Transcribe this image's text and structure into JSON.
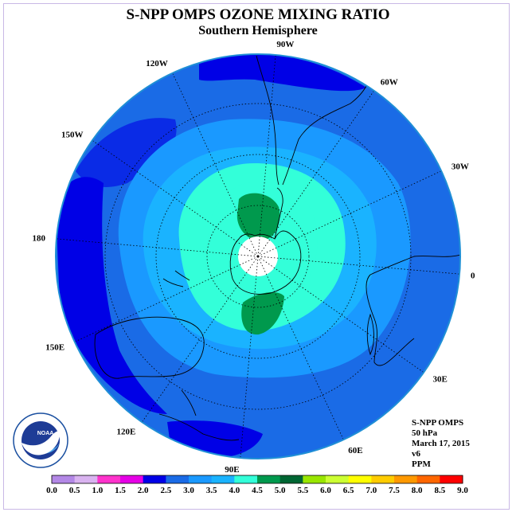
{
  "title": "S-NPP OMPS OZONE MIXING RATIO",
  "subtitle": "Southern Hemisphere",
  "info_lines": [
    "S-NPP OMPS",
    "50 hPa",
    "March 17, 2015",
    "v6",
    "PPM"
  ],
  "longitude_labels": [
    {
      "text": "0",
      "lon": 0
    },
    {
      "text": "30E",
      "lon": 30
    },
    {
      "text": "60E",
      "lon": 60
    },
    {
      "text": "90E",
      "lon": 90
    },
    {
      "text": "120E",
      "lon": 120
    },
    {
      "text": "150E",
      "lon": 150
    },
    {
      "text": "180",
      "lon": 180
    },
    {
      "text": "150W",
      "lon": -150
    },
    {
      "text": "120W",
      "lon": -120
    },
    {
      "text": "90W",
      "lon": -90
    },
    {
      "text": "60W",
      "lon": -60
    },
    {
      "text": "30W",
      "lon": -30
    }
  ],
  "colorbar": {
    "labels": [
      "0.0",
      "0.5",
      "1.0",
      "1.5",
      "2.0",
      "2.5",
      "3.0",
      "3.5",
      "4.0",
      "4.5",
      "5.0",
      "5.5",
      "6.0",
      "6.5",
      "7.0",
      "7.5",
      "8.0",
      "8.5",
      "9.0"
    ],
    "colors": [
      "#b388e6",
      "#d9b3f0",
      "#ff33cc",
      "#e600e6",
      "#0000e6",
      "#1a6be6",
      "#1a99ff",
      "#1ab3ff",
      "#33ffd9",
      "#00994d",
      "#006633",
      "#99e600",
      "#ccff33",
      "#ffff00",
      "#ffcc00",
      "#ff9900",
      "#ff6600",
      "#ff0000",
      "#8c5a3c"
    ]
  },
  "logo": {
    "text": "NOAA",
    "ring_text": "NATIONAL OCEANIC AND ATMOSPHERIC ADMINISTRATION"
  },
  "colors": {
    "ocean_edge": "#1f8fd6",
    "land_line": "#000000"
  }
}
